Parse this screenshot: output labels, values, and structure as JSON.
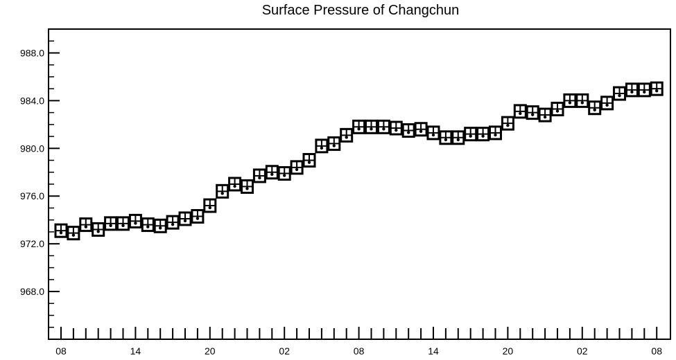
{
  "chart_data": {
    "type": "scatter",
    "title": "Surface Pressure of Changchun",
    "xlabel": "",
    "ylabel": "",
    "ylim": [
      964.0,
      990.0
    ],
    "y_ticks": [
      "968.0",
      "972.0",
      "976.0",
      "980.0",
      "984.0",
      "988.0"
    ],
    "x_tick_labels": [
      "08",
      "14",
      "20",
      "02",
      "08",
      "14",
      "20",
      "02",
      "08"
    ],
    "x_unit": "hour",
    "x": [
      0,
      1,
      2,
      3,
      4,
      5,
      6,
      7,
      8,
      9,
      10,
      11,
      12,
      13,
      14,
      15,
      16,
      17,
      18,
      19,
      20,
      21,
      22,
      23,
      24,
      25,
      26,
      27,
      28,
      29,
      30,
      31,
      32,
      33,
      34,
      35,
      36,
      37,
      38,
      39,
      40,
      41,
      42,
      43,
      44,
      45,
      46,
      47,
      48
    ],
    "series": [
      {
        "values": [
          973.1,
          972.9,
          973.6,
          973.2,
          973.7,
          973.7,
          973.9,
          973.6,
          973.5,
          973.8,
          974.1,
          974.3,
          975.2,
          976.4,
          977.0,
          976.8,
          977.7,
          978.0,
          977.9,
          978.4,
          979.0,
          980.2,
          980.4,
          981.1,
          981.8,
          981.8,
          981.8,
          981.7,
          981.5,
          981.6,
          981.3,
          980.9,
          980.9,
          981.2,
          981.2,
          981.3,
          982.1,
          983.1,
          983.0,
          982.8,
          983.3,
          984.0,
          984.0,
          983.4,
          983.8,
          984.6,
          984.9,
          984.9,
          985.0
        ]
      }
    ],
    "grid": false,
    "legend": "none"
  }
}
